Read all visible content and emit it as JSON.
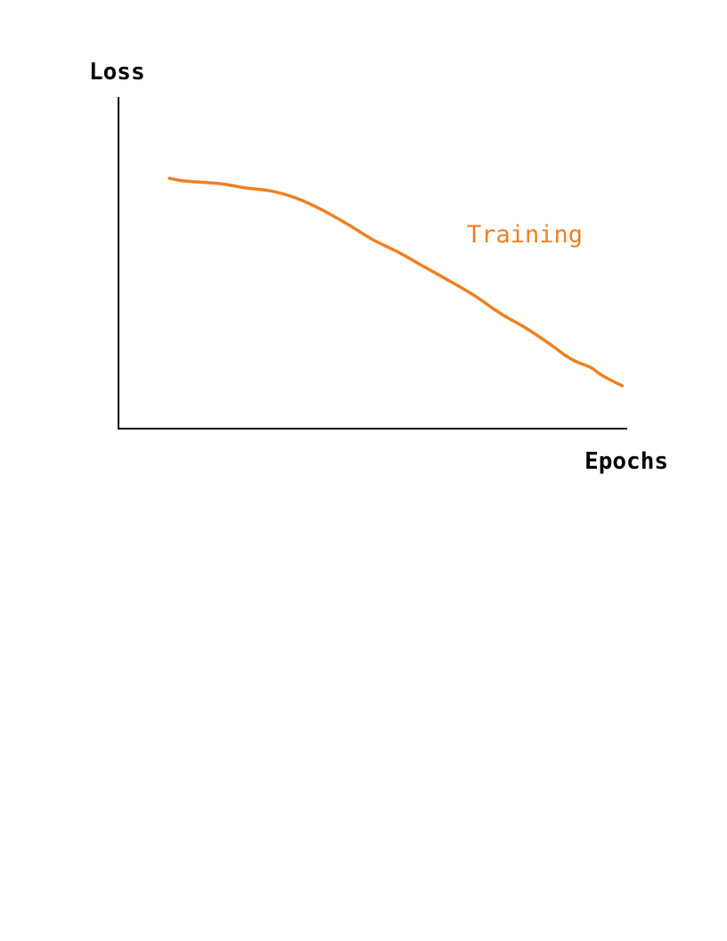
{
  "chart_data": {
    "type": "line",
    "xlabel": "Epochs",
    "ylabel": "Loss",
    "grid": false,
    "legend": "inline label near series",
    "xlim": [
      0,
      100
    ],
    "ylim": [
      0,
      100
    ],
    "series": [
      {
        "name": "Training",
        "color": "#f0801e",
        "x": [
          10,
          13,
          20,
          25,
          30,
          35,
          40,
          45,
          50,
          55,
          60,
          65,
          70,
          75,
          80,
          85,
          88,
          90,
          93,
          95,
          99
        ],
        "y": [
          75.5,
          74.7,
          73.9,
          72.6,
          71.7,
          69.5,
          66,
          61.7,
          57,
          53.2,
          48.9,
          44.6,
          40.1,
          34.8,
          30.4,
          25.3,
          21.9,
          20.2,
          18.3,
          16.1,
          12.9
        ]
      }
    ]
  }
}
